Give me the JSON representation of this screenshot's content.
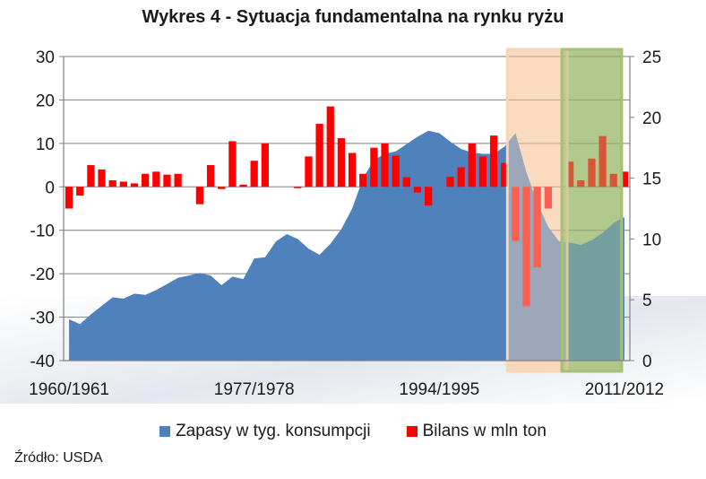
{
  "title": "Wykres 4 - Sytuacja fundamentalna na rynku ryżu",
  "source": "Źródło: USDA",
  "colors": {
    "area": "#4f81bd",
    "bars": "#ff0000",
    "highlight_orange": "#fbd5b5",
    "highlight_green": "#a5c079",
    "axis": "#7f7f7f",
    "grid": "#7f7f7f"
  },
  "chart_data": {
    "type": "bar+area",
    "title": "Wykres 4 - Sytuacja fundamentalna na rynku ryżu",
    "x_tick_labels": [
      "1960/1961",
      "1977/1978",
      "1994/1995",
      "2011/2012"
    ],
    "left_axis": {
      "ylim": [
        -40,
        30
      ],
      "ticks": [
        30,
        20,
        10,
        0,
        -10,
        -20,
        -30,
        -40
      ],
      "series": "Bilans w mln ton"
    },
    "right_axis": {
      "ylim": [
        0,
        25
      ],
      "ticks": [
        25,
        20,
        15,
        10,
        5,
        0
      ],
      "series": "Zapasy w tyg. konsumpcji"
    },
    "highlights": [
      {
        "from": "2001/2002",
        "to": "2005/2006",
        "color": "orange"
      },
      {
        "from": "2006/2007",
        "to": "2010/2011",
        "color": "green"
      }
    ],
    "series": [
      {
        "name": "Zapasy w tyg. konsumpcji",
        "kind": "area",
        "axis": "right",
        "x": [
          "1960/1961",
          "1961/1962",
          "1962/1963",
          "1963/1964",
          "1964/1965",
          "1965/1966",
          "1966/1967",
          "1967/1968",
          "1968/1969",
          "1969/1970",
          "1970/1971",
          "1971/1972",
          "1972/1973",
          "1973/1974",
          "1974/1975",
          "1975/1976",
          "1976/1977",
          "1977/1978",
          "1978/1979",
          "1979/1980",
          "1980/1981",
          "1981/1982",
          "1982/1983",
          "1983/1984",
          "1984/1985",
          "1985/1986",
          "1986/1987",
          "1987/1988",
          "1988/1989",
          "1989/1990",
          "1990/1991",
          "1991/1992",
          "1992/1993",
          "1993/1994",
          "1994/1995",
          "1995/1996",
          "1996/1997",
          "1997/1998",
          "1998/1999",
          "1999/2000",
          "2000/2001",
          "2001/2002",
          "2002/2003",
          "2003/2004",
          "2004/2005",
          "2005/2006",
          "2006/2007",
          "2007/2008",
          "2008/2009",
          "2009/2010",
          "2010/2011",
          "2011/2012"
        ],
        "values": [
          3.4,
          3.0,
          3.8,
          4.5,
          5.2,
          5.1,
          5.5,
          5.4,
          5.8,
          6.3,
          6.8,
          7.0,
          7.2,
          7.0,
          6.2,
          6.9,
          6.7,
          8.4,
          8.5,
          9.8,
          10.4,
          10.0,
          9.2,
          8.7,
          9.6,
          10.8,
          12.5,
          15.0,
          16.5,
          17.0,
          17.2,
          17.8,
          18.4,
          18.9,
          18.7,
          18.0,
          17.4,
          17.1,
          17.0,
          17.0,
          17.6,
          18.7,
          15.5,
          13.0,
          11.0,
          9.8,
          9.7,
          9.5,
          9.9,
          10.5,
          11.3,
          11.8
        ]
      },
      {
        "name": "Bilans w mln ton",
        "kind": "bar",
        "axis": "left",
        "x": [
          "1960/1961",
          "1961/1962",
          "1962/1963",
          "1963/1964",
          "1964/1965",
          "1965/1966",
          "1966/1967",
          "1967/1968",
          "1968/1969",
          "1969/1970",
          "1970/1971",
          "1971/1972",
          "1972/1973",
          "1973/1974",
          "1974/1975",
          "1975/1976",
          "1976/1977",
          "1977/1978",
          "1978/1979",
          "1979/1980",
          "1980/1981",
          "1981/1982",
          "1982/1983",
          "1983/1984",
          "1984/1985",
          "1985/1986",
          "1986/1987",
          "1987/1988",
          "1988/1989",
          "1989/1990",
          "1990/1991",
          "1991/1992",
          "1992/1993",
          "1993/1994",
          "1994/1995",
          "1995/1996",
          "1996/1997",
          "1997/1998",
          "1998/1999",
          "1999/2000",
          "2000/2001",
          "2001/2002",
          "2002/2003",
          "2003/2004",
          "2004/2005",
          "2005/2006",
          "2006/2007",
          "2007/2008",
          "2008/2009",
          "2009/2010",
          "2010/2011",
          "2011/2012"
        ],
        "values": [
          -5,
          -2,
          5,
          4,
          1.5,
          1.2,
          0.8,
          3,
          3.5,
          2.8,
          3,
          0,
          -4,
          5,
          -0.5,
          10.5,
          0.5,
          6,
          10,
          0,
          0,
          -0.3,
          7,
          14.5,
          18.5,
          11.2,
          7.8,
          3,
          9,
          10,
          7.2,
          2.2,
          -1.3,
          -4.3,
          0,
          2.3,
          4.5,
          10,
          7,
          11.8,
          5.5,
          -12.5,
          -27.5,
          -18.5,
          -5,
          0,
          5.8,
          1.5,
          6.5,
          11.7,
          3,
          3.5
        ]
      }
    ]
  },
  "legend": [
    {
      "label": "Zapasy w tyg. konsumpcji",
      "color": "#4f81bd"
    },
    {
      "label": "Bilans w mln ton",
      "color": "#ff0000"
    }
  ]
}
